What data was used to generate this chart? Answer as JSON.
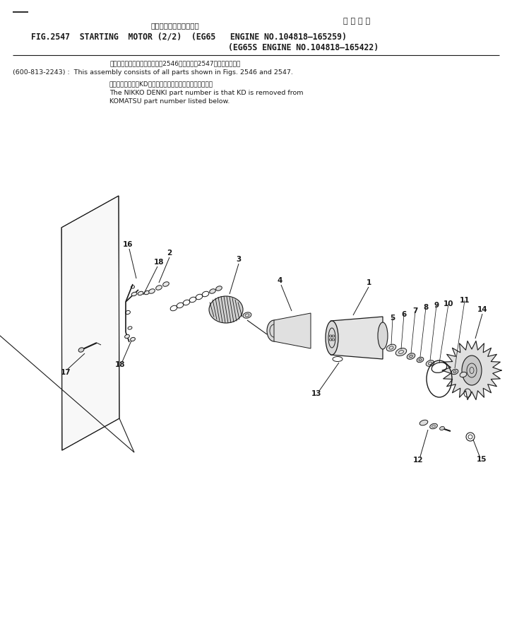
{
  "bg_color": "#ffffff",
  "lc": "#1a1a1a",
  "title_jp": "スターティング　モータ",
  "applicable_jp": "適 用 号 機",
  "title_line1": "FIG.2547  STARTING  MOTOR (2/2)  (EG65   ENGINE NO.104818–165259)",
  "title_line2": "(EG65S ENGINE NO.104818–165422)",
  "note1_jp": "このアセンブリの構成部品は第2546図および第2547図を含みます。",
  "note1_en": "(600-813-2243) :  This assembly consists of all parts shown in Figs. 2546 and 2547.",
  "note2_jp": "品番のメーカ記号KDを除いたものが日興電機の品番です。",
  "note2_en1": "The NIKKO DENKI part number is that KD is removed from",
  "note2_en2": "KOMATSU part number listed below."
}
